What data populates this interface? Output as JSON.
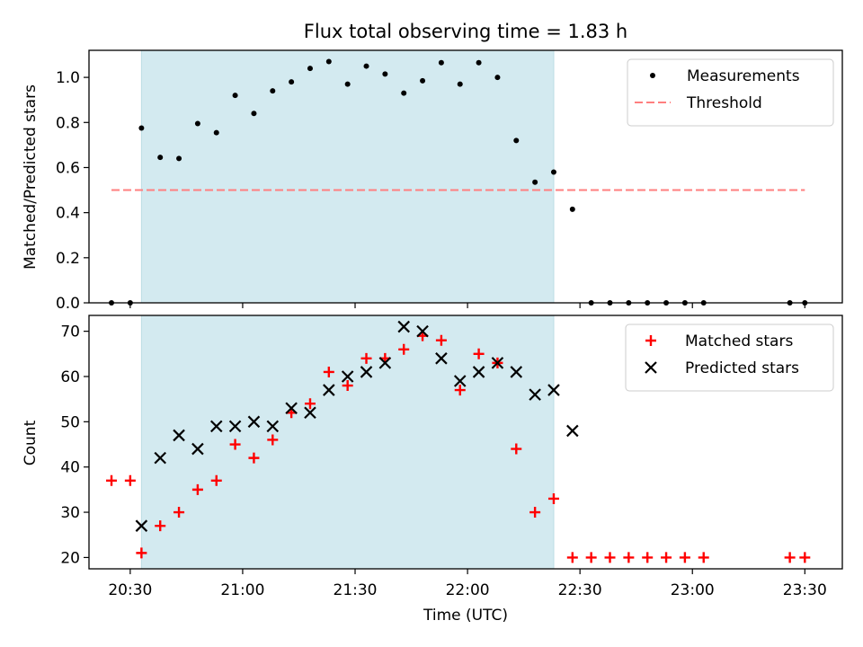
{
  "chart_data": {
    "type": "scatter",
    "title": "Flux total observing time = 1.83 h",
    "xlabel": "Time (UTC)",
    "x_tick_labels": [
      "20:30",
      "21:00",
      "21:30",
      "22:00",
      "22:30",
      "23:00",
      "23:30"
    ],
    "x_tick_values": [
      "20:30",
      "21:00",
      "21:30",
      "22:00",
      "22:30",
      "23:00",
      "23:30"
    ],
    "xlim": [
      "20:19",
      "23:40"
    ],
    "shaded_region": {
      "start": "20:33",
      "end": "22:23",
      "color": "#d3eaf0"
    },
    "times": [
      "20:25",
      "20:30",
      "20:33",
      "20:38",
      "20:43",
      "20:48",
      "20:53",
      "20:58",
      "21:03",
      "21:08",
      "21:13",
      "21:18",
      "21:23",
      "21:28",
      "21:33",
      "21:38",
      "21:43",
      "21:48",
      "21:53",
      "21:58",
      "22:03",
      "22:08",
      "22:13",
      "22:18",
      "22:23",
      "22:28",
      "22:33",
      "22:38",
      "22:43",
      "22:48",
      "22:53",
      "22:58",
      "23:03",
      "23:26",
      "23:30"
    ],
    "panels": [
      {
        "ylabel": "Matched/Predicted stars",
        "ylim": [
          0,
          1.12
        ],
        "y_ticks": [
          "0.0",
          "0.2",
          "0.4",
          "0.6",
          "0.8",
          "1.0"
        ],
        "legend_position": "upper right",
        "threshold": {
          "name": "Threshold",
          "value": 0.5,
          "from": "20:25",
          "to": "23:30",
          "color": "#ff7f7f"
        },
        "series": [
          {
            "name": "Measurements",
            "marker": "dot",
            "color": "#000000",
            "values": [
              0.0,
              0.0,
              0.775,
              0.645,
              0.64,
              0.795,
              0.755,
              0.92,
              0.84,
              0.94,
              0.98,
              1.04,
              1.07,
              0.97,
              1.05,
              1.015,
              0.93,
              0.985,
              1.065,
              0.97,
              1.065,
              1.0,
              0.72,
              0.535,
              0.58,
              0.415,
              0.0,
              0.0,
              0.0,
              0.0,
              0.0,
              0.0,
              0.0,
              0.0,
              0.0
            ]
          }
        ]
      },
      {
        "ylabel": "Count",
        "ylim": [
          17.5,
          73.5
        ],
        "y_ticks": [
          "20",
          "30",
          "40",
          "50",
          "60",
          "70"
        ],
        "legend_position": "upper right",
        "series": [
          {
            "name": "Matched stars",
            "marker": "plus",
            "color": "#ff0000",
            "values": [
              37,
              37,
              21,
              27,
              30,
              35,
              37,
              45,
              42,
              46,
              52,
              54,
              61,
              58,
              64,
              64,
              66,
              69,
              68,
              57,
              65,
              63,
              44,
              30,
              33,
              20,
              20,
              20,
              20,
              20,
              20,
              20,
              20,
              20,
              20
            ]
          },
          {
            "name": "Predicted stars",
            "marker": "x",
            "color": "#000000",
            "values": [
              null,
              null,
              27,
              42,
              47,
              44,
              49,
              49,
              50,
              49,
              53,
              52,
              57,
              60,
              61,
              63,
              71,
              70,
              64,
              59,
              61,
              63,
              61,
              56,
              57,
              48,
              null,
              null,
              null,
              null,
              null,
              null,
              null,
              null,
              null
            ]
          }
        ]
      }
    ]
  }
}
